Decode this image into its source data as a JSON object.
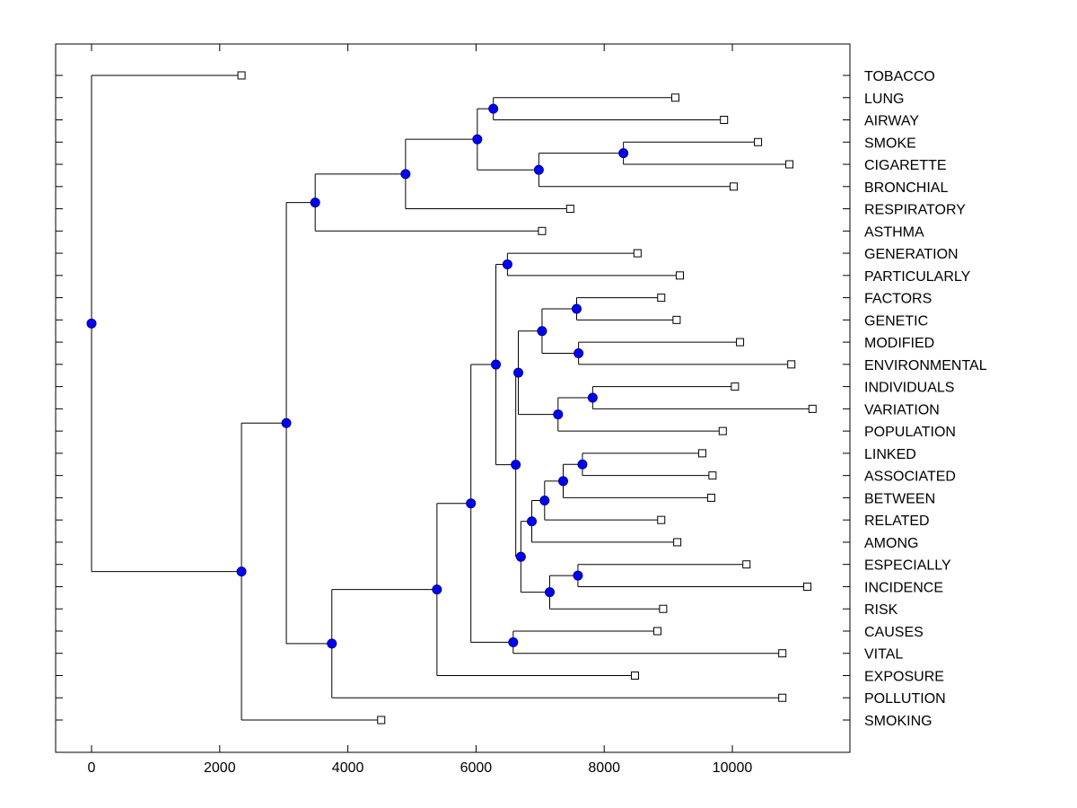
{
  "chart_data": {
    "type": "dendrogram",
    "title": "",
    "xlabel": "",
    "ylabel": "",
    "xlim": [
      -560,
      11800
    ],
    "x_ticks": [
      0,
      2000,
      4000,
      6000,
      8000,
      10000
    ],
    "x_tick_labels": [
      "0",
      "2000",
      "4000",
      "6000",
      "8000",
      "10000"
    ],
    "grid": false,
    "orientation": "left-root, labels on right",
    "colors": {
      "node_fill": "#0000ff",
      "leaf_fill": "#ffffff",
      "line": "#000000"
    },
    "leaves": [
      {
        "id": "TOBACCO",
        "label": "TOBACCO",
        "x": 2340
      },
      {
        "id": "LUNG",
        "label": "LUNG",
        "x": 9110
      },
      {
        "id": "AIRWAY",
        "label": "AIRWAY",
        "x": 9870
      },
      {
        "id": "SMOKE",
        "label": "SMOKE",
        "x": 10400
      },
      {
        "id": "CIGARETTE",
        "label": "CIGARETTE",
        "x": 10890
      },
      {
        "id": "BRONCHIAL",
        "label": "BRONCHIAL",
        "x": 10020
      },
      {
        "id": "RESPIRATORY",
        "label": "RESPIRATORY",
        "x": 7470
      },
      {
        "id": "ASTHMA",
        "label": "ASTHMA",
        "x": 7030
      },
      {
        "id": "GENERATION",
        "label": "GENERATION",
        "x": 8520
      },
      {
        "id": "PARTICULARLY",
        "label": "PARTICULARLY",
        "x": 9180
      },
      {
        "id": "FACTORS",
        "label": "FACTORS",
        "x": 8890
      },
      {
        "id": "GENETIC",
        "label": "GENETIC",
        "x": 9130
      },
      {
        "id": "MODIFIED",
        "label": "MODIFIED",
        "x": 10120
      },
      {
        "id": "ENVIRONMENTAL",
        "label": "ENVIRONMENTAL",
        "x": 10920
      },
      {
        "id": "INDIVIDUALS",
        "label": "INDIVIDUALS",
        "x": 10040
      },
      {
        "id": "VARIATION",
        "label": "VARIATION",
        "x": 11250
      },
      {
        "id": "POPULATION",
        "label": "POPULATION",
        "x": 9850
      },
      {
        "id": "LINKED",
        "label": "LINKED",
        "x": 9530
      },
      {
        "id": "ASSOCIATED",
        "label": "ASSOCIATED",
        "x": 9690
      },
      {
        "id": "BETWEEN",
        "label": "BETWEEN",
        "x": 9670
      },
      {
        "id": "RELATED",
        "label": "RELATED",
        "x": 8890
      },
      {
        "id": "AMONG",
        "label": "AMONG",
        "x": 9140
      },
      {
        "id": "ESPECIALLY",
        "label": "ESPECIALLY",
        "x": 10220
      },
      {
        "id": "INCIDENCE",
        "label": "INCIDENCE",
        "x": 11170
      },
      {
        "id": "RISK",
        "label": "RISK",
        "x": 8920
      },
      {
        "id": "CAUSES",
        "label": "CAUSES",
        "x": 8830
      },
      {
        "id": "VITAL",
        "label": "VITAL",
        "x": 10780
      },
      {
        "id": "EXPOSURE",
        "label": "EXPOSURE",
        "x": 8480
      },
      {
        "id": "POLLUTION",
        "label": "POLLUTION",
        "x": 10780
      },
      {
        "id": "SMOKING",
        "label": "SMOKING",
        "x": 4520
      }
    ],
    "nodes": [
      {
        "id": "n_lung_airway",
        "x": 6270,
        "children": [
          "LUNG",
          "AIRWAY"
        ]
      },
      {
        "id": "n_smoke_cig",
        "x": 8300,
        "children": [
          "SMOKE",
          "CIGARETTE"
        ]
      },
      {
        "id": "n_smoke_bron",
        "x": 6980,
        "children": [
          "n_smoke_cig",
          "BRONCHIAL"
        ]
      },
      {
        "id": "n_resp_upper",
        "x": 6020,
        "children": [
          "n_lung_airway",
          "n_smoke_bron"
        ]
      },
      {
        "id": "n_resp",
        "x": 4900,
        "children": [
          "n_resp_upper",
          "RESPIRATORY"
        ]
      },
      {
        "id": "n_asthma",
        "x": 3490,
        "children": [
          "n_resp",
          "ASTHMA"
        ]
      },
      {
        "id": "n_gen_part",
        "x": 6490,
        "children": [
          "GENERATION",
          "PARTICULARLY"
        ]
      },
      {
        "id": "n_fact_gen",
        "x": 7570,
        "children": [
          "FACTORS",
          "GENETIC"
        ]
      },
      {
        "id": "n_mod_env",
        "x": 7600,
        "children": [
          "MODIFIED",
          "ENVIRONMENTAL"
        ]
      },
      {
        "id": "n_fgme",
        "x": 7030,
        "children": [
          "n_fact_gen",
          "n_mod_env"
        ]
      },
      {
        "id": "n_ind_var",
        "x": 7820,
        "children": [
          "INDIVIDUALS",
          "VARIATION"
        ]
      },
      {
        "id": "n_ivp",
        "x": 7280,
        "children": [
          "n_ind_var",
          "POPULATION"
        ]
      },
      {
        "id": "n_fgme_ivp",
        "x": 6660,
        "children": [
          "n_fgme",
          "n_ivp"
        ]
      },
      {
        "id": "n_link_assoc",
        "x": 7660,
        "children": [
          "LINKED",
          "ASSOCIATED"
        ]
      },
      {
        "id": "n_lab",
        "x": 7360,
        "children": [
          "n_link_assoc",
          "BETWEEN"
        ]
      },
      {
        "id": "n_labr",
        "x": 7070,
        "children": [
          "n_lab",
          "RELATED"
        ]
      },
      {
        "id": "n_labra",
        "x": 6870,
        "children": [
          "n_labr",
          "AMONG"
        ]
      },
      {
        "id": "n_esp_inc",
        "x": 7590,
        "children": [
          "ESPECIALLY",
          "INCIDENCE"
        ]
      },
      {
        "id": "n_eir",
        "x": 7150,
        "children": [
          "n_esp_inc",
          "RISK"
        ]
      },
      {
        "id": "n_assoc_risk",
        "x": 6700,
        "children": [
          "n_labra",
          "n_eir"
        ]
      },
      {
        "id": "n_mid",
        "x": 6620,
        "children": [
          "n_fgme_ivp",
          "n_assoc_risk"
        ]
      },
      {
        "id": "n_gen_mid",
        "x": 6310,
        "children": [
          "n_gen_part",
          "n_mid"
        ]
      },
      {
        "id": "n_causes_vital",
        "x": 6580,
        "children": [
          "CAUSES",
          "VITAL"
        ]
      },
      {
        "id": "n_big",
        "x": 5920,
        "children": [
          "n_gen_mid",
          "n_causes_vital"
        ]
      },
      {
        "id": "n_exposure",
        "x": 5390,
        "children": [
          "n_big",
          "EXPOSURE"
        ]
      },
      {
        "id": "n_pollution",
        "x": 3750,
        "children": [
          "n_exposure",
          "POLLUTION"
        ]
      },
      {
        "id": "n_two",
        "x": 3040,
        "children": [
          "n_asthma",
          "n_pollution"
        ]
      },
      {
        "id": "n_smoking",
        "x": 2340,
        "children": [
          "n_two",
          "SMOKING"
        ]
      },
      {
        "id": "n_root",
        "x": 0,
        "children": [
          "TOBACCO",
          "n_smoking"
        ]
      }
    ]
  }
}
